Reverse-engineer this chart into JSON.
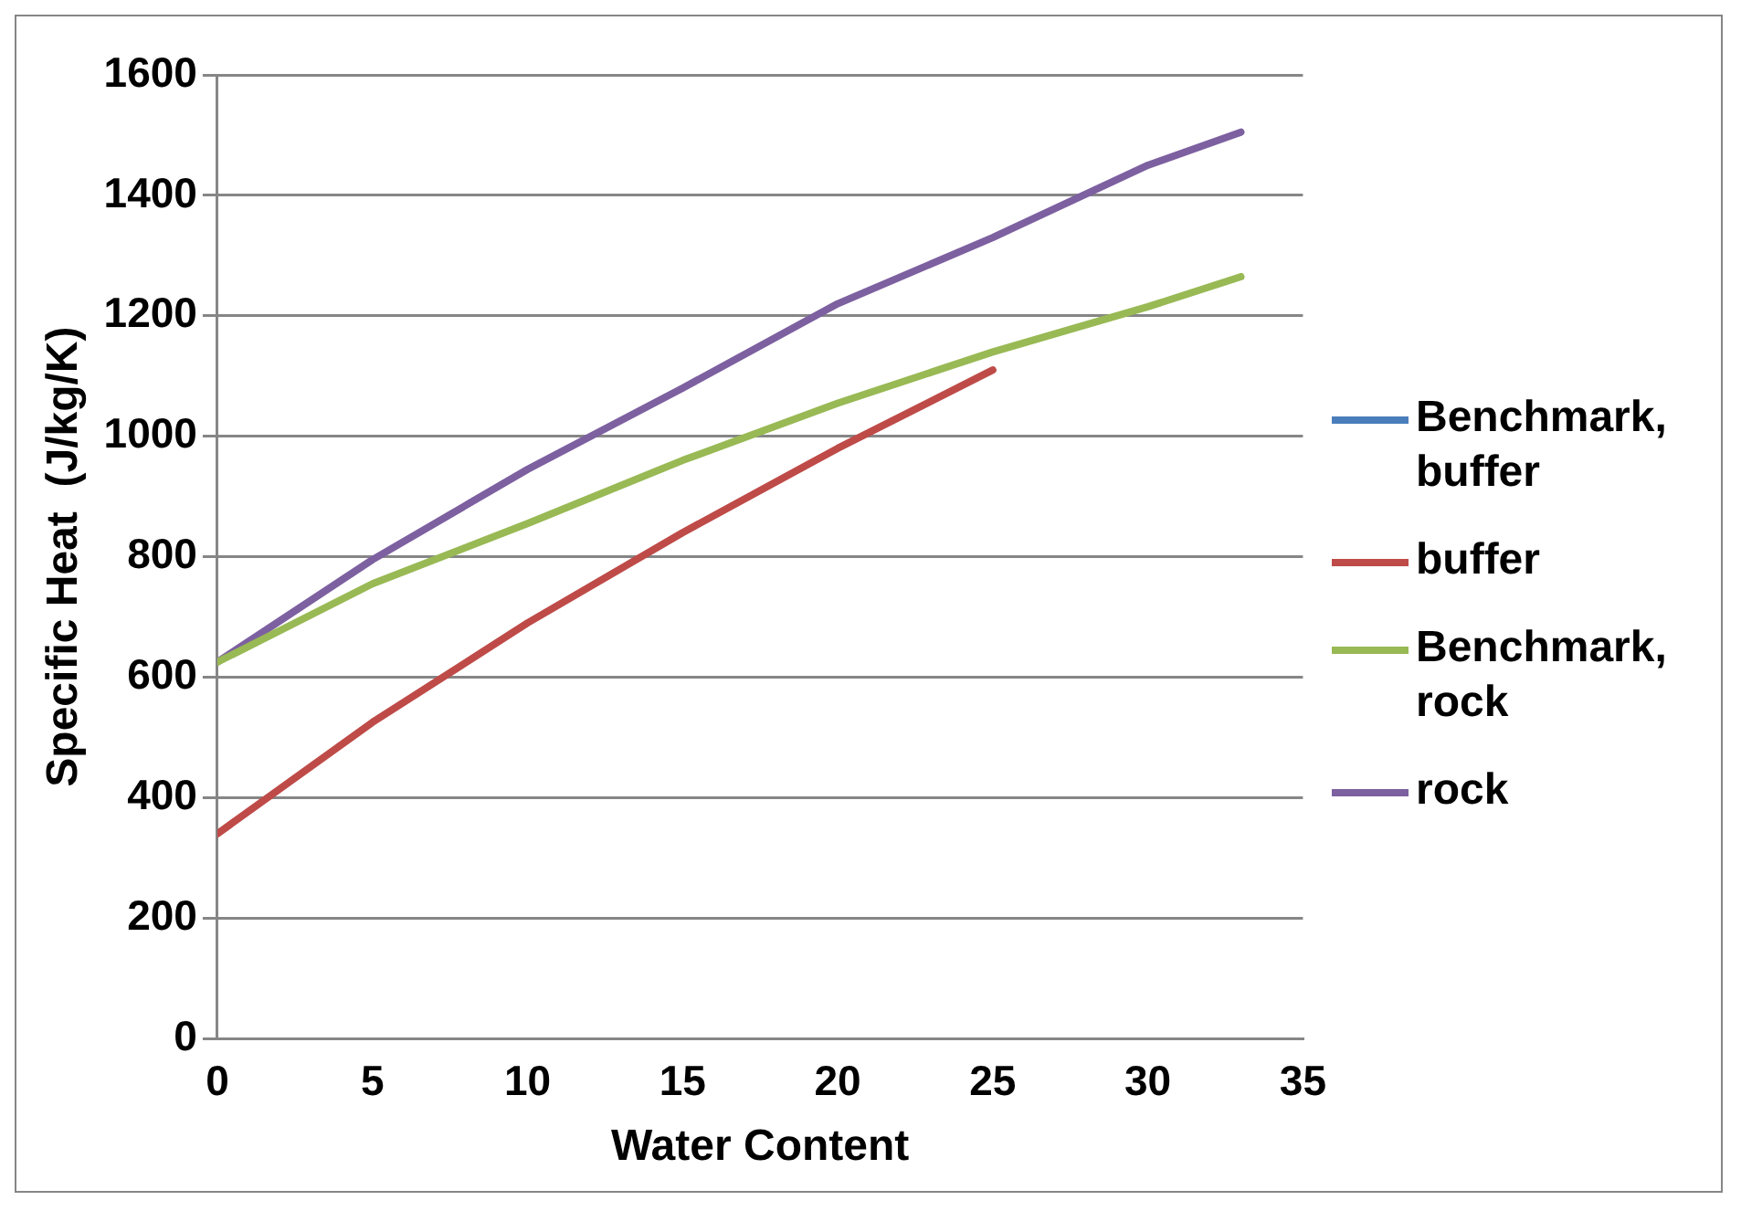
{
  "chart_data": {
    "type": "line",
    "xlabel": "Water Content",
    "ylabel": "Specific Heat  (J/kg/K)",
    "x": [
      0,
      5,
      10,
      15,
      20,
      25,
      30,
      33
    ],
    "xlim": [
      0,
      35
    ],
    "xticks": [
      0,
      5,
      10,
      15,
      20,
      25,
      30,
      35
    ],
    "ylim": [
      0,
      1600
    ],
    "yticks": [
      0,
      200,
      400,
      600,
      800,
      1000,
      1200,
      1400,
      1600
    ],
    "grid": "y",
    "legend": "right",
    "marker": "none",
    "line_style": "solid",
    "series": [
      {
        "name": "Benchmark, buffer",
        "color": "#4a7ebb",
        "values": [
          null,
          null,
          null,
          null,
          null,
          null,
          null,
          null
        ]
      },
      {
        "name": "buffer",
        "color": "#be4b48",
        "values": [
          340,
          525,
          690,
          840,
          980,
          1110,
          null,
          null
        ]
      },
      {
        "name": "Benchmark, rock",
        "color": "#98b954",
        "values": [
          625,
          755,
          855,
          960,
          1055,
          1140,
          1215,
          1265
        ]
      },
      {
        "name": "rock",
        "color": "#7d60a0",
        "values": [
          625,
          795,
          945,
          1080,
          1220,
          1330,
          1450,
          1505
        ]
      }
    ]
  }
}
